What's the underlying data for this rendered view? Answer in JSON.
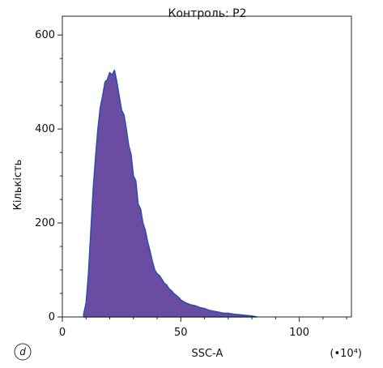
{
  "chart_data": {
    "type": "histogram",
    "title": "Контроль: P2",
    "xlabel": "SSC-A",
    "ylabel": "Кількість",
    "x_multiplier": "(•10⁴)",
    "panel_letter": "d",
    "xlim": [
      0,
      122
    ],
    "ylim": [
      0,
      640
    ],
    "x_ticks": [
      0,
      50,
      100
    ],
    "y_ticks": [
      0,
      200,
      400,
      600
    ],
    "grid": false,
    "fill_color": "#6a4ca3",
    "line_color": "#2f4fa6",
    "series": [
      {
        "x": [
          9,
          10,
          11,
          12,
          13,
          14,
          15,
          16,
          17,
          18,
          19,
          20,
          21,
          22,
          23,
          24,
          25,
          26,
          27,
          28,
          29,
          30,
          31,
          32,
          33,
          34,
          35,
          36,
          37,
          38,
          39,
          40,
          41,
          42,
          43,
          44,
          45,
          46,
          47,
          48,
          49,
          50,
          52,
          54,
          56,
          58,
          60,
          62,
          64,
          66,
          68,
          70,
          72,
          74,
          76,
          78,
          80,
          82
        ],
        "y": [
          5,
          30,
          90,
          180,
          270,
          340,
          400,
          445,
          470,
          500,
          505,
          520,
          515,
          525,
          500,
          470,
          440,
          430,
          400,
          365,
          345,
          300,
          290,
          240,
          230,
          200,
          185,
          160,
          140,
          118,
          100,
          92,
          88,
          80,
          72,
          68,
          60,
          56,
          50,
          46,
          42,
          36,
          30,
          26,
          24,
          20,
          18,
          14,
          12,
          10,
          8,
          8,
          6,
          5,
          4,
          3,
          2,
          0
        ]
      }
    ]
  }
}
